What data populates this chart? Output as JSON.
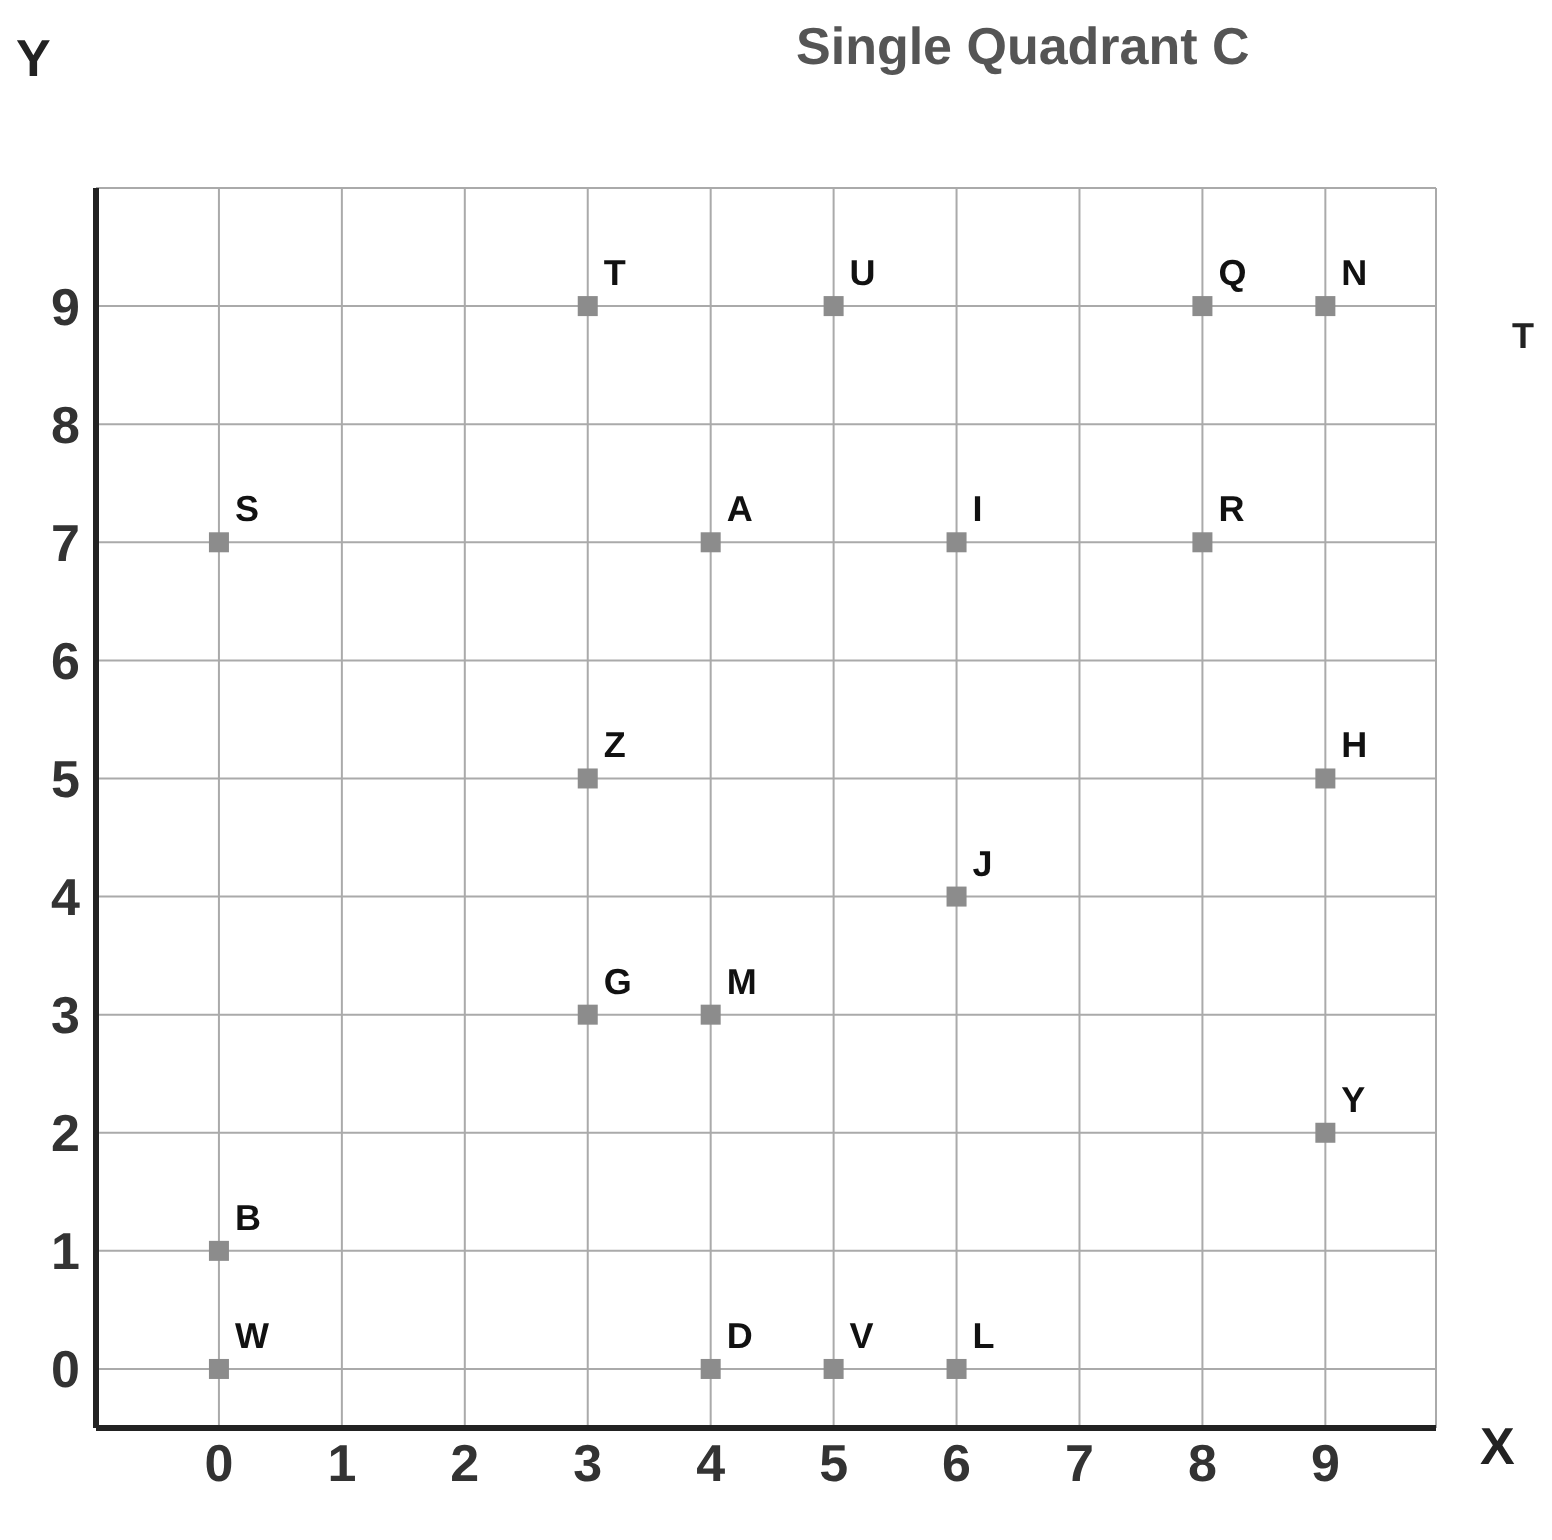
{
  "chart_data": {
    "type": "scatter",
    "title": "Single Quadrant C",
    "xlabel": "X",
    "ylabel": "Y",
    "annotations": [
      "T"
    ],
    "series": [
      {
        "color": "#8c8c8c",
        "x": [
          3,
          5,
          8,
          9,
          0,
          4,
          6,
          8,
          3,
          9,
          6,
          3,
          4,
          9,
          0,
          0,
          4,
          5,
          6
        ],
        "values": [
          9,
          9,
          9,
          9,
          7,
          7,
          7,
          7,
          5,
          5,
          4,
          3,
          3,
          2,
          1,
          0,
          0,
          0,
          0
        ],
        "value_labels": [
          "T",
          "U",
          "Q",
          "N",
          "S",
          "A",
          "I",
          "R",
          "Z",
          "H",
          "J",
          "G",
          "M",
          "Y",
          "B",
          "W",
          "D",
          "V",
          "L"
        ]
      }
    ],
    "xlim": [
      -1,
      9.9
    ],
    "ylim": [
      -0.5,
      10
    ],
    "xticks": [
      0,
      1,
      2,
      3,
      4,
      5,
      6,
      7,
      8,
      9
    ],
    "yticks": [
      0,
      1,
      2,
      3,
      4,
      5,
      6,
      7,
      8,
      9
    ],
    "grid": true,
    "marker": "square"
  }
}
